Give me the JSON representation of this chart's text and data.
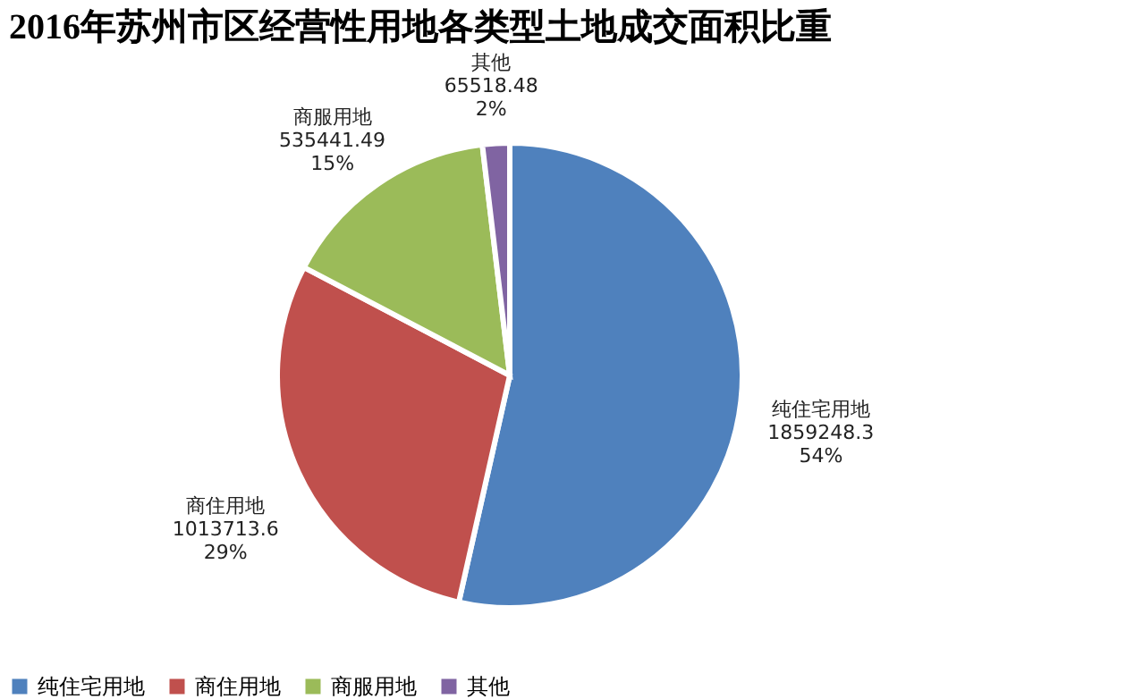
{
  "chart_data": {
    "type": "pie",
    "title": "2016年苏州市区经营性用地各类型土地成交面积比重",
    "categories": [
      "纯住宅用地",
      "商住用地",
      "商服用地",
      "其他"
    ],
    "values": [
      1859248.3,
      1013713.6,
      535441.49,
      65518.48
    ],
    "value_labels": [
      "1859248.3\n54%",
      "1013713.6\n29%",
      "535441.49\n15%",
      "65518.48\n2%"
    ],
    "colors": [
      "#4f81bd",
      "#c0504d",
      "#9bbb59",
      "#8064a2"
    ],
    "legend": "bottom"
  }
}
